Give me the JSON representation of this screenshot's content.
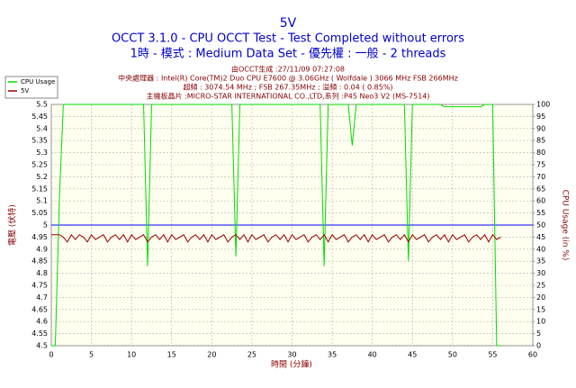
{
  "chart_data": {
    "type": "line",
    "title": "5V",
    "subtitle": "OCCT 3.1.0 - CPU OCCT Test - Test Completed without errors",
    "subtitle2": "1時 - 模式 : Medium Data Set - 優先權 : 一般 - 2 threads",
    "info": [
      "由OCCT生成 :27/11/09 07:27:08",
      "中央處理器 : Intel(R) Core(TM)2 Duo CPU E7600 @ 3.06GHz ( Wolfdale ) 3066 MHz FSB 266MHz",
      "超頻 : 3074.54 MHz ; FSB 267.35MHz ; 溢頻 : 0.04 ( 0.85%)",
      "主機板晶片 :MICRO-STAR INTERNATIONAL CO.,LTD,系列 :P45 Neo3 V2 (MS-7514)"
    ],
    "xlabel": "時間 (分鐘)",
    "ylabel": "電壓 (伏特)",
    "y2label": "CPU Usage (in %)",
    "xlim": [
      0,
      60
    ],
    "xticks": [
      0,
      5,
      10,
      15,
      20,
      25,
      30,
      35,
      40,
      45,
      50,
      55,
      60
    ],
    "ylim": [
      4.5,
      5.5
    ],
    "yticks": [
      4.5,
      4.55,
      4.6,
      4.65,
      4.7,
      4.75,
      4.8,
      4.85,
      4.9,
      4.95,
      5,
      5.05,
      5.1,
      5.15,
      5.2,
      5.25,
      5.3,
      5.35,
      5.4,
      5.45,
      5.5
    ],
    "y2lim": [
      0,
      100
    ],
    "y2ticks": [
      0,
      5,
      10,
      15,
      20,
      25,
      30,
      35,
      40,
      45,
      50,
      55,
      60,
      65,
      70,
      75,
      80,
      85,
      90,
      95,
      100
    ],
    "grid": true,
    "hline": {
      "value": 5,
      "color": "#0000ff"
    },
    "x": [
      0,
      0.5,
      1,
      1.5,
      2,
      2.5,
      3,
      3.5,
      4,
      4.5,
      5,
      5.5,
      6,
      6.5,
      7,
      7.5,
      8,
      8.5,
      9,
      9.5,
      10,
      10.5,
      11,
      11.5,
      12,
      12.5,
      13,
      13.5,
      14,
      14.5,
      15,
      15.5,
      16,
      16.5,
      17,
      17.5,
      18,
      18.5,
      19,
      19.5,
      20,
      20.5,
      21,
      21.5,
      22,
      22.5,
      23,
      23.5,
      24,
      24.5,
      25,
      25.5,
      26,
      26.5,
      27,
      27.5,
      28,
      28.5,
      29,
      29.5,
      30,
      30.5,
      31,
      31.5,
      32,
      32.5,
      33,
      33.5,
      34,
      34.5,
      35,
      35.5,
      36,
      36.5,
      37,
      37.5,
      38,
      38.5,
      39,
      39.5,
      40,
      40.5,
      41,
      41.5,
      42,
      42.5,
      43,
      43.5,
      44,
      44.5,
      45,
      45.5,
      46,
      46.5,
      47,
      47.5,
      48,
      48.5,
      49,
      49.5,
      50,
      50.5,
      51,
      51.5,
      52,
      52.5,
      53,
      53.5,
      54,
      54.5,
      55,
      55.5,
      56
    ],
    "series": [
      {
        "name": "CPU Usage",
        "color": "#00dd00",
        "axis": "y2",
        "values": [
          0,
          0,
          60,
          100,
          100,
          100,
          100,
          100,
          100,
          100,
          100,
          100,
          100,
          100,
          100,
          100,
          100,
          100,
          100,
          100,
          100,
          100,
          100,
          100,
          33,
          100,
          100,
          100,
          100,
          100,
          100,
          100,
          100,
          100,
          100,
          100,
          100,
          100,
          100,
          100,
          100,
          100,
          100,
          100,
          100,
          100,
          37,
          100,
          100,
          100,
          100,
          100,
          100,
          100,
          100,
          100,
          100,
          100,
          100,
          100,
          100,
          100,
          100,
          100,
          100,
          100,
          100,
          100,
          33,
          100,
          100,
          100,
          100,
          100,
          100,
          83,
          100,
          100,
          100,
          100,
          100,
          100,
          100,
          100,
          100,
          100,
          100,
          100,
          100,
          35,
          100,
          100,
          100,
          100,
          100,
          100,
          100,
          100,
          99,
          99,
          99,
          99,
          99,
          99,
          99,
          99,
          99,
          99,
          100,
          100,
          100,
          0,
          0
        ]
      },
      {
        "name": "5V",
        "color": "#990000",
        "values": [
          4.96,
          4.96,
          4.96,
          4.95,
          4.93,
          4.96,
          4.94,
          4.96,
          4.95,
          4.93,
          4.96,
          4.94,
          4.95,
          4.96,
          4.93,
          4.95,
          4.96,
          4.94,
          4.96,
          4.93,
          4.96,
          4.94,
          4.95,
          4.96,
          4.93,
          4.95,
          4.96,
          4.94,
          4.96,
          4.93,
          4.96,
          4.94,
          4.95,
          4.96,
          4.93,
          4.95,
          4.96,
          4.94,
          4.96,
          4.93,
          4.96,
          4.94,
          4.95,
          4.96,
          4.93,
          4.95,
          4.96,
          4.94,
          4.96,
          4.93,
          4.96,
          4.94,
          4.95,
          4.96,
          4.93,
          4.95,
          4.96,
          4.94,
          4.96,
          4.93,
          4.96,
          4.94,
          4.95,
          4.96,
          4.93,
          4.95,
          4.96,
          4.94,
          4.96,
          4.93,
          4.96,
          4.94,
          4.95,
          4.96,
          4.93,
          4.95,
          4.96,
          4.94,
          4.96,
          4.93,
          4.96,
          4.94,
          4.95,
          4.96,
          4.93,
          4.95,
          4.96,
          4.94,
          4.96,
          4.93,
          4.96,
          4.94,
          4.95,
          4.96,
          4.93,
          4.95,
          4.96,
          4.94,
          4.96,
          4.93,
          4.96,
          4.94,
          4.95,
          4.96,
          4.93,
          4.95,
          4.96,
          4.94,
          4.96,
          4.93,
          4.96,
          4.94,
          4.95
        ]
      }
    ]
  }
}
